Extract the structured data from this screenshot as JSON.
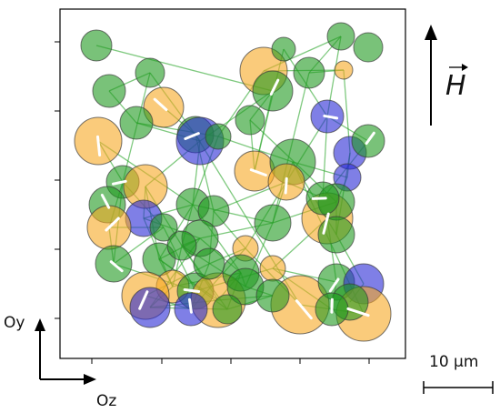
{
  "axes": {
    "oy_label": "Oy",
    "oz_label": "Oz"
  },
  "field": {
    "label": "H"
  },
  "scale_bar": {
    "label": "10 µm"
  },
  "colors": {
    "orange": "#f7a823",
    "blue": "#2a2ad6",
    "green": "#1f9a1f",
    "link": "#2aa52a",
    "arrow": "#ffffff",
    "frame": "#000000"
  },
  "legend_note": ""
}
